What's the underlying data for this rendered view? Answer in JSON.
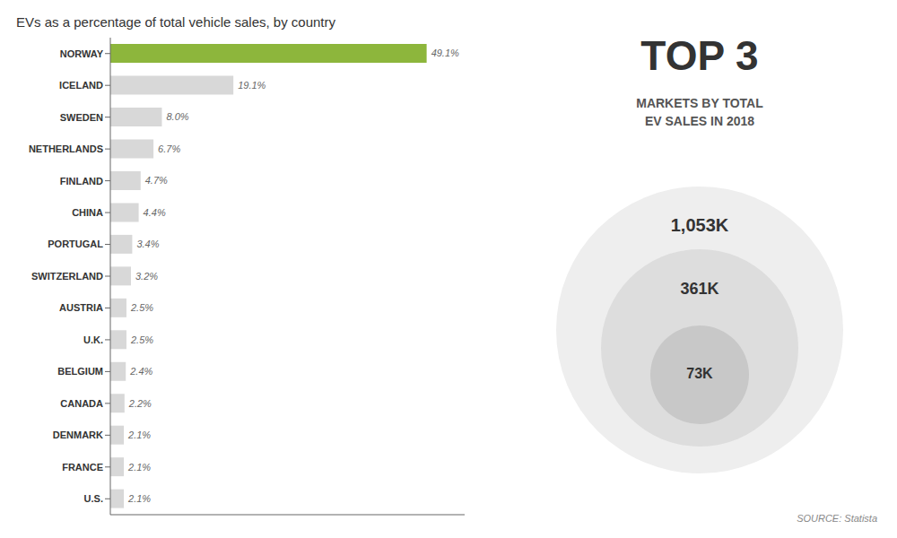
{
  "chart_data": {
    "type": "bar",
    "orientation": "horizontal",
    "title": "EVs as a percentage of total vehicle sales, by country",
    "categories": [
      "NORWAY",
      "ICELAND",
      "SWEDEN",
      "NETHERLANDS",
      "FINLAND",
      "CHINA",
      "PORTUGAL",
      "SWITZERLAND",
      "AUSTRIA",
      "U.K.",
      "BELGIUM",
      "CANADA",
      "DENMARK",
      "FRANCE",
      "U.S."
    ],
    "values": [
      49.1,
      19.1,
      8.0,
      6.7,
      4.7,
      4.4,
      3.4,
      3.2,
      2.5,
      2.5,
      2.4,
      2.2,
      2.1,
      2.1,
      2.1
    ],
    "value_labels": [
      "49.1%",
      "19.1%",
      "8.0%",
      "6.7%",
      "4.7%",
      "4.4%",
      "3.4%",
      "3.2%",
      "2.5%",
      "2.5%",
      "2.4%",
      "2.2%",
      "2.1%",
      "2.1%",
      "2.1%"
    ],
    "colors": [
      "#8db63c",
      "#d8d8d8",
      "#d8d8d8",
      "#d8d8d8",
      "#d8d8d8",
      "#d8d8d8",
      "#d8d8d8",
      "#d8d8d8",
      "#d8d8d8",
      "#d8d8d8",
      "#d8d8d8",
      "#d8d8d8",
      "#d8d8d8",
      "#d8d8d8",
      "#d8d8d8"
    ],
    "data_labels": true,
    "xlim": [
      0,
      55
    ],
    "tick_labels": "y",
    "grid": false,
    "annotations": [
      "TOP 3",
      "MARKETS BY TOTAL\nEV SALES IN 2018",
      "1,053K",
      "361K",
      "73K",
      "SOURCE: Statista"
    ]
  }
}
